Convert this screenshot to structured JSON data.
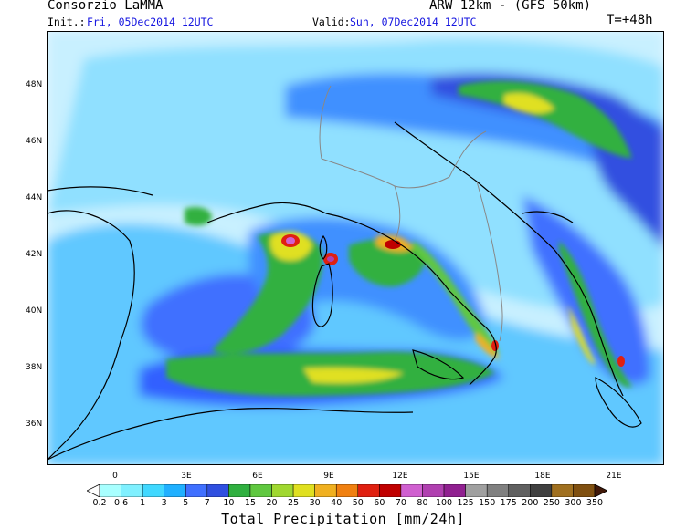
{
  "header": {
    "org": "Consorzio LaMMA",
    "model": "ARW 12km - (GFS 50km)",
    "init_label": "Init.:",
    "init_value": "Fri, 05Dec2014 12UTC",
    "valid_label": "Valid:",
    "valid_value": "Sun, 07Dec2014 12UTC",
    "lead": "T=+48h"
  },
  "map": {
    "lat_labels": [
      "48N",
      "46N",
      "44N",
      "42N",
      "40N",
      "38N",
      "36N"
    ],
    "lon_labels": [
      "0",
      "3E",
      "6E",
      "9E",
      "12E",
      "15E",
      "18E",
      "21E"
    ]
  },
  "colorbar": {
    "title": "Total Precipitation [mm/24h]",
    "levels": [
      "0.2",
      "0.6",
      "1",
      "3",
      "5",
      "7",
      "10",
      "15",
      "20",
      "25",
      "30",
      "40",
      "50",
      "60",
      "70",
      "80",
      "100",
      "125",
      "150",
      "175",
      "200",
      "250",
      "300",
      "350"
    ],
    "colors": [
      "#a8ffff",
      "#7ff0ff",
      "#40d8ff",
      "#20b0ff",
      "#4070ff",
      "#3050e0",
      "#30b040",
      "#60c840",
      "#a0d830",
      "#e0e020",
      "#f0b020",
      "#f08010",
      "#e02010",
      "#c00000",
      "#d060d0",
      "#b040b0",
      "#902090",
      "#a0a0a0",
      "#808080",
      "#606060",
      "#404040",
      "#a07020",
      "#805010",
      "#603010",
      "#401808"
    ]
  }
}
